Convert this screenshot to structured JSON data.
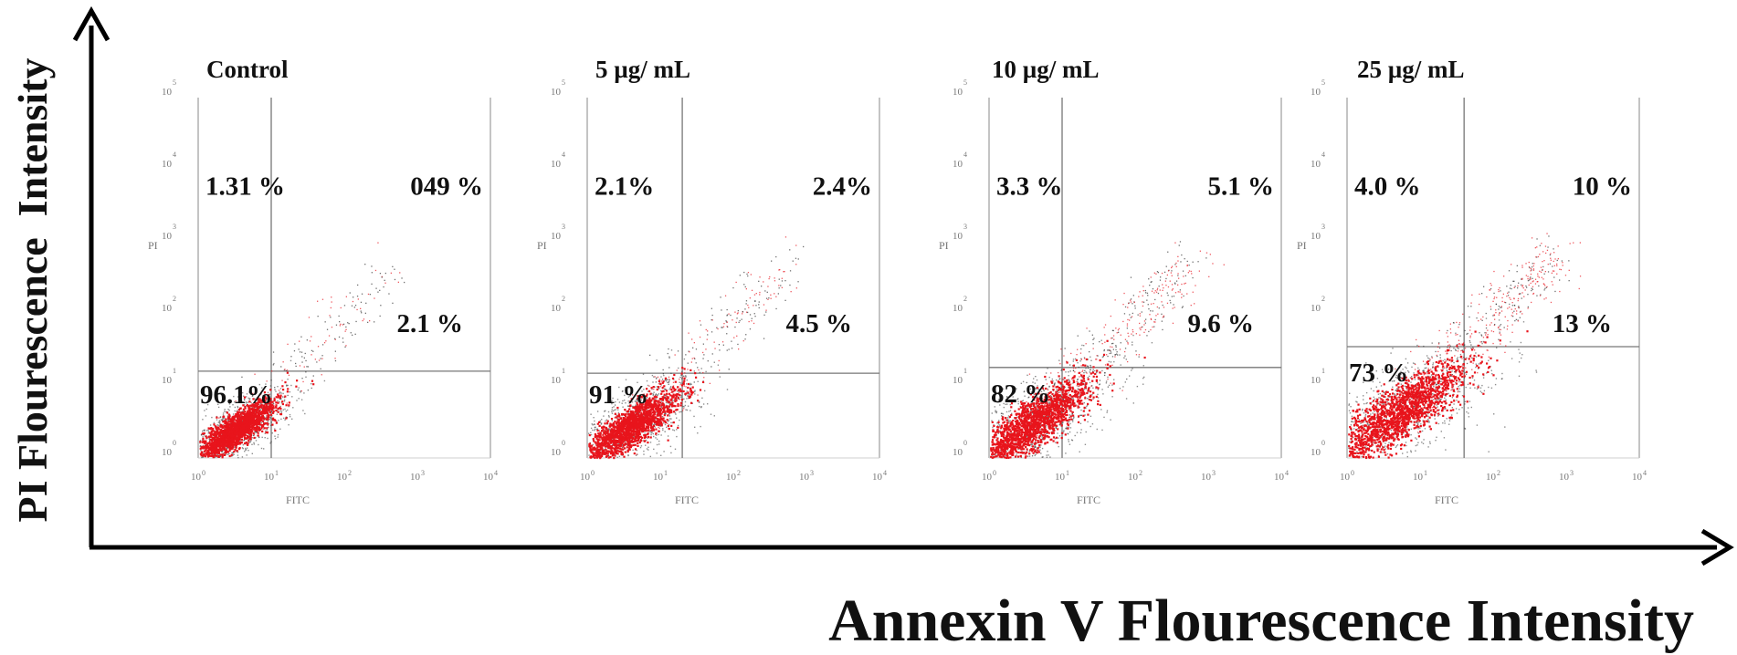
{
  "figure": {
    "x_axis_label": "Annexin V Flourescence Intensity",
    "y_axis_label": "PI Flourescence  Intensity"
  },
  "colors": {
    "live_events": "#e8141c",
    "background_events": "#333333",
    "frame": "#888888",
    "gate": "#777777"
  },
  "chart_data": [
    {
      "type": "scatter",
      "title": "Control",
      "xlabel": "FITC",
      "ylabel": "PI",
      "x_scale": "log",
      "y_scale": "log",
      "xlim": [
        1,
        10000
      ],
      "ylim": [
        1,
        100000
      ],
      "quadrant_gate": {
        "x": 10,
        "y": 16
      },
      "quadrants": {
        "upper_left": "1.31 %",
        "upper_right": "049 %",
        "lower_left": "96.1%",
        "lower_right": "2.1 %"
      },
      "population_center": {
        "x": 3.2,
        "y": 2.5
      }
    },
    {
      "type": "scatter",
      "title": "5 µg/ mL",
      "xlabel": "FITC",
      "ylabel": "PI",
      "x_scale": "log",
      "y_scale": "log",
      "xlim": [
        1,
        10000
      ],
      "ylim": [
        1,
        100000
      ],
      "quadrant_gate": {
        "x": 20,
        "y": 15
      },
      "quadrants": {
        "upper_left": "2.1%",
        "upper_right": "2.4%",
        "lower_left": "91 %",
        "lower_right": "4.5 %"
      },
      "population_center": {
        "x": 3.6,
        "y": 2.6
      }
    },
    {
      "type": "scatter",
      "title": "10 µg/ mL",
      "xlabel": "FITC",
      "ylabel": "PI",
      "x_scale": "log",
      "y_scale": "log",
      "xlim": [
        1,
        10000
      ],
      "ylim": [
        1,
        100000
      ],
      "quadrant_gate": {
        "x": 10,
        "y": 18
      },
      "quadrants": {
        "upper_left": "3.3 %",
        "upper_right": "5.1 %",
        "lower_left": "82 %",
        "lower_right": "9.6 %"
      },
      "population_center": {
        "x": 3.8,
        "y": 3.0
      }
    },
    {
      "type": "scatter",
      "title": "25  µg/ mL",
      "xlabel": "FITC",
      "ylabel": "PI",
      "x_scale": "log",
      "y_scale": "log",
      "xlim": [
        1,
        10000
      ],
      "ylim": [
        1,
        100000
      ],
      "quadrant_gate": {
        "x": 40,
        "y": 35
      },
      "quadrants": {
        "upper_left": "4.0 %",
        "upper_right": "10 %",
        "lower_left": "73 %",
        "lower_right": "13 %"
      },
      "population_center": {
        "x": 5.0,
        "y": 4.2
      }
    }
  ]
}
